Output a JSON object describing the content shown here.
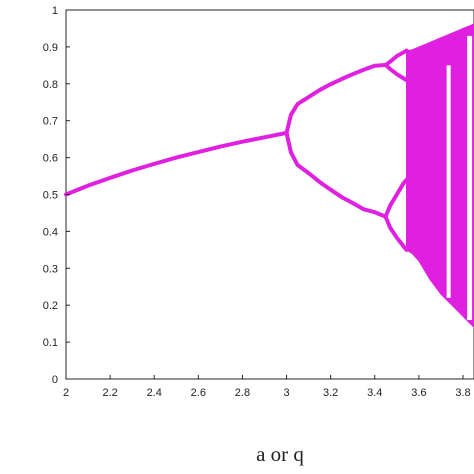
{
  "chart_data": {
    "type": "line",
    "title": "",
    "xlabel": "a or q",
    "ylabel": "",
    "xlim": [
      2,
      3.85
    ],
    "ylim": [
      0,
      1
    ],
    "x_ticks": [
      "2",
      "2.2",
      "2.4",
      "2.6",
      "2.8",
      "3",
      "3.2",
      "3.4",
      "3.6",
      "3.8"
    ],
    "y_ticks": [
      "0",
      "0.1",
      "0.2",
      "0.3",
      "0.4",
      "0.5",
      "0.6",
      "0.7",
      "0.8",
      "0.9",
      "1"
    ],
    "grid": false,
    "series_color": "#e020e0",
    "series": [
      {
        "x": [
          2.0,
          2.1,
          2.2,
          2.3,
          2.4,
          2.5,
          2.6,
          2.7,
          2.8,
          2.9,
          3.0
        ],
        "values": [
          0.5,
          0.524,
          0.545,
          0.565,
          0.583,
          0.6,
          0.615,
          0.63,
          0.643,
          0.655,
          0.667
        ]
      },
      {
        "x": [
          3.0,
          3.02,
          3.05,
          3.1,
          3.15,
          3.2,
          3.25,
          3.3,
          3.35,
          3.4,
          3.449
        ],
        "values": [
          0.667,
          0.716,
          0.745,
          0.764,
          0.783,
          0.799,
          0.813,
          0.826,
          0.838,
          0.849,
          0.851
        ]
      },
      {
        "x": [
          3.0,
          3.02,
          3.05,
          3.1,
          3.15,
          3.2,
          3.25,
          3.3,
          3.35,
          3.4,
          3.449
        ],
        "values": [
          0.667,
          0.614,
          0.58,
          0.558,
          0.534,
          0.513,
          0.493,
          0.477,
          0.46,
          0.452,
          0.44
        ]
      },
      {
        "x": [
          3.449,
          3.47,
          3.5,
          3.53,
          3.544
        ],
        "values": [
          0.851,
          0.86,
          0.875,
          0.885,
          0.89
        ]
      },
      {
        "x": [
          3.449,
          3.47,
          3.5,
          3.53,
          3.544
        ],
        "values": [
          0.851,
          0.84,
          0.826,
          0.815,
          0.81
        ]
      },
      {
        "x": [
          3.449,
          3.47,
          3.5,
          3.53,
          3.544
        ],
        "values": [
          0.44,
          0.47,
          0.5,
          0.53,
          0.54
        ]
      },
      {
        "x": [
          3.449,
          3.47,
          3.5,
          3.53,
          3.544
        ],
        "values": [
          0.44,
          0.41,
          0.383,
          0.36,
          0.35
        ]
      }
    ],
    "chaotic_region": {
      "x": [
        3.544,
        3.57,
        3.6,
        3.65,
        3.7,
        3.75,
        3.8,
        3.85
      ],
      "upper": [
        0.89,
        0.892,
        0.9,
        0.912,
        0.925,
        0.937,
        0.95,
        0.962
      ],
      "lower": [
        0.35,
        0.34,
        0.32,
        0.27,
        0.23,
        0.2,
        0.17,
        0.14
      ]
    }
  }
}
